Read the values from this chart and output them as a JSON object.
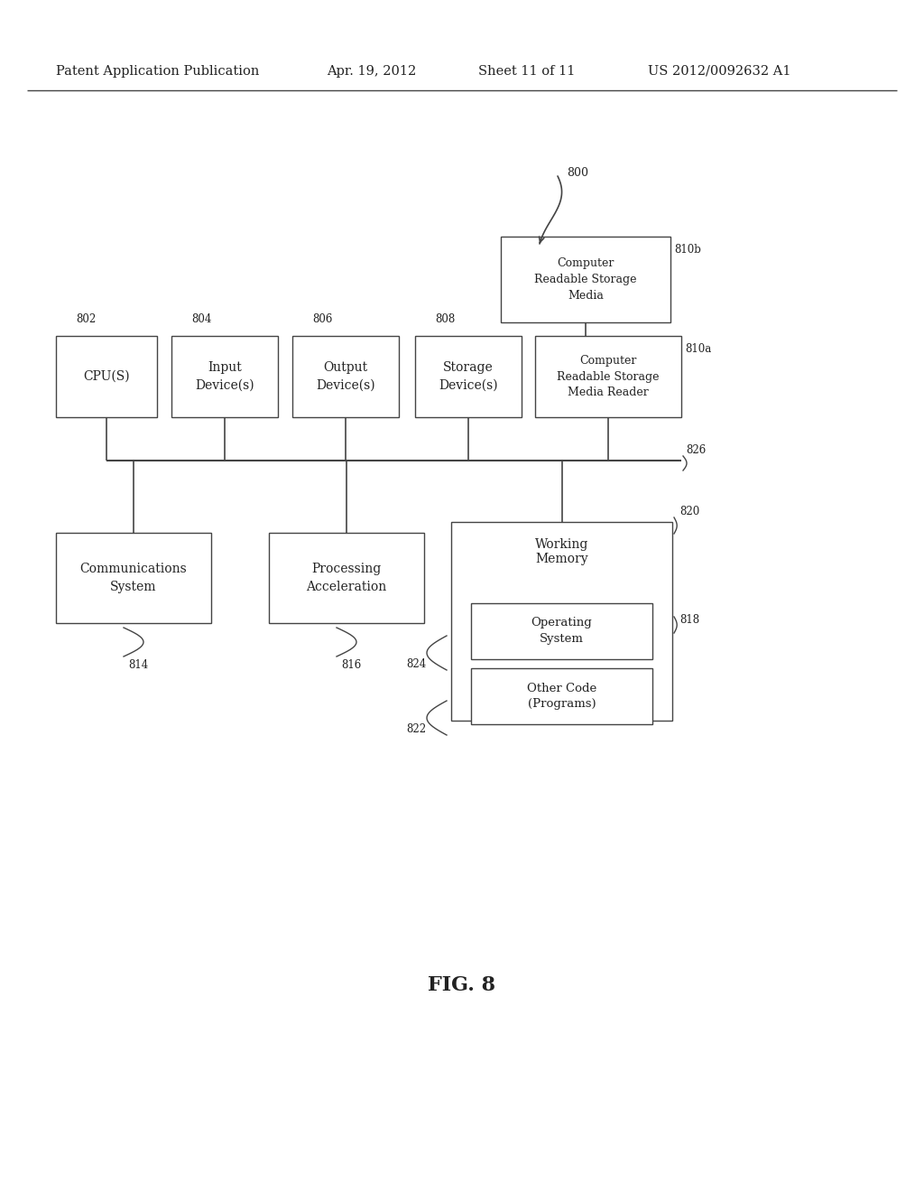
{
  "bg_color": "#ffffff",
  "header_text": "Patent Application Publication",
  "header_date": "Apr. 19, 2012",
  "header_sheet": "Sheet 11 of 11",
  "header_patent": "US 2012/0092632 A1",
  "fig_label": "FIG. 8",
  "line_color": "#444444",
  "text_color": "#222222"
}
